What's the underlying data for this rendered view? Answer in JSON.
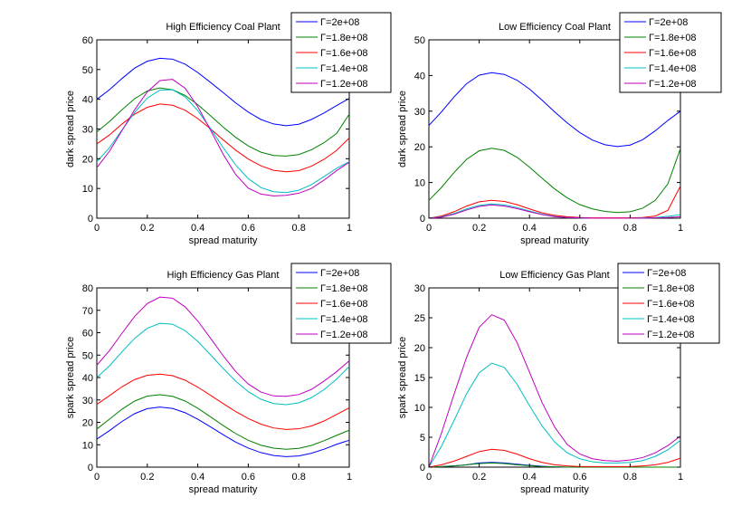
{
  "chart_data": [
    {
      "type": "line",
      "title": "High Efficiency Coal Plant",
      "xlabel": "spread maturity",
      "ylabel": "dark spread price",
      "xlim": [
        0,
        1
      ],
      "ylim": [
        0,
        60
      ],
      "xticks": [
        0,
        0.2,
        0.4,
        0.6,
        0.8,
        1
      ],
      "xtick_labels": [
        "0",
        "0.2",
        "0.4",
        "0.6",
        "0.8",
        "1"
      ],
      "yticks": [
        0,
        10,
        20,
        30,
        40,
        50,
        60
      ],
      "ytick_labels": [
        "0",
        "10",
        "20",
        "30",
        "40",
        "50",
        "60"
      ],
      "grid": false,
      "legend_position": "top-right",
      "x": [
        0,
        0.05,
        0.1,
        0.15,
        0.2,
        0.25,
        0.3,
        0.35,
        0.4,
        0.45,
        0.5,
        0.55,
        0.6,
        0.65,
        0.7,
        0.75,
        0.8,
        0.85,
        0.9,
        0.95,
        1
      ],
      "series": [
        {
          "name": "Γ=2e+08",
          "color": "#0000ff",
          "values": [
            40,
            43.2,
            47,
            50.5,
            52.8,
            53.8,
            53.5,
            51.8,
            49,
            45.7,
            42.3,
            38.8,
            35.7,
            33.2,
            31.7,
            31.1,
            31.6,
            33.2,
            35.4,
            37.9,
            40.3
          ]
        },
        {
          "name": "Γ=1.8e+08",
          "color": "#008000",
          "values": [
            29,
            32.5,
            36.5,
            40.2,
            42.8,
            43.8,
            43.2,
            41.3,
            38.2,
            34.5,
            30.7,
            27.2,
            24.3,
            22.2,
            21.1,
            20.9,
            21.4,
            23,
            25.4,
            28.5,
            35
          ]
        },
        {
          "name": "Γ=1.6e+08",
          "color": "#ff0000",
          "values": [
            25,
            28,
            31.7,
            35,
            37.3,
            38.4,
            38,
            36.3,
            33.5,
            30.1,
            26.4,
            22.9,
            19.9,
            17.6,
            16.1,
            15.6,
            16,
            17.5,
            19.8,
            22.8,
            27
          ]
        },
        {
          "name": "Γ=1.4e+08",
          "color": "#00bfbf",
          "values": [
            19,
            23.7,
            29.7,
            35.6,
            40.4,
            43.1,
            43.2,
            40.8,
            36.2,
            30.2,
            23.8,
            17.9,
            13.3,
            10.3,
            8.9,
            8.6,
            9.4,
            11.3,
            14,
            16.8,
            19
          ]
        },
        {
          "name": "Γ=1.2e+08",
          "color": "#bf00bf",
          "values": [
            17,
            22.5,
            29.5,
            36.5,
            42.5,
            46.3,
            46.7,
            43.7,
            37.5,
            29.7,
            21.6,
            14.7,
            10.1,
            8.1,
            7.5,
            7.7,
            8.4,
            10,
            12.8,
            16,
            18.8
          ]
        }
      ]
    },
    {
      "type": "line",
      "title": "Low Efficiency Coal Plant",
      "xlabel": "spread maturity",
      "ylabel": "dark spread price",
      "xlim": [
        0,
        1
      ],
      "ylim": [
        0,
        50
      ],
      "xticks": [
        0,
        0.2,
        0.4,
        0.6,
        0.8,
        1
      ],
      "xtick_labels": [
        "0",
        "0.2",
        "0.4",
        "0.6",
        "0.8",
        "1"
      ],
      "yticks": [
        0,
        10,
        20,
        30,
        40,
        50
      ],
      "ytick_labels": [
        "0",
        "10",
        "20",
        "30",
        "40",
        "50"
      ],
      "grid": false,
      "legend_position": "top-right",
      "x": [
        0,
        0.05,
        0.1,
        0.15,
        0.2,
        0.25,
        0.3,
        0.35,
        0.4,
        0.45,
        0.5,
        0.55,
        0.6,
        0.65,
        0.7,
        0.75,
        0.8,
        0.85,
        0.9,
        0.95,
        1
      ],
      "series": [
        {
          "name": "Γ=2e+08",
          "color": "#0000ff",
          "values": [
            26,
            29.8,
            34,
            37.7,
            40.1,
            40.8,
            40.3,
            38.7,
            36.2,
            33.1,
            29.8,
            26.7,
            24,
            21.9,
            20.6,
            20.1,
            20.5,
            22,
            24.5,
            27.4,
            30
          ]
        },
        {
          "name": "Γ=1.8e+08",
          "color": "#008000",
          "values": [
            5,
            8.6,
            12.8,
            16.5,
            18.9,
            19.6,
            19,
            17.1,
            14.3,
            11.2,
            8.2,
            5.7,
            3.8,
            2.6,
            1.9,
            1.6,
            1.8,
            2.8,
            5,
            9.6,
            19.5
          ]
        },
        {
          "name": "Γ=1.6e+08",
          "color": "#ff0000",
          "values": [
            0,
            0.6,
            1.8,
            3.4,
            4.6,
            5,
            4.7,
            3.8,
            2.6,
            1.5,
            0.8,
            0.4,
            0.2,
            0.1,
            0.1,
            0.1,
            0.1,
            0.2,
            0.6,
            2.2,
            9
          ]
        },
        {
          "name": "Γ=1.4e+08",
          "color": "#00bfbf",
          "values": [
            0,
            0.4,
            1.3,
            2.6,
            3.6,
            4,
            3.7,
            3,
            2,
            1.1,
            0.5,
            0.2,
            0.1,
            0,
            0,
            0,
            0,
            0.1,
            0.2,
            0.5,
            1
          ]
        },
        {
          "name": "Γ=1.2e+08",
          "color": "#bf00bf",
          "values": [
            0,
            0.3,
            1.1,
            2.3,
            3.3,
            3.7,
            3.4,
            2.7,
            1.8,
            1,
            0.4,
            0.2,
            0.1,
            0,
            0,
            0,
            0,
            0,
            0.1,
            0.2,
            0.4
          ]
        }
      ]
    },
    {
      "type": "line",
      "title": "High Efficiency Gas Plant",
      "xlabel": "spread maturity",
      "ylabel": "spark spread price",
      "xlim": [
        0,
        1
      ],
      "ylim": [
        0,
        80
      ],
      "xticks": [
        0,
        0.2,
        0.4,
        0.6,
        0.8,
        1
      ],
      "xtick_labels": [
        "0",
        "0.2",
        "0.4",
        "0.6",
        "0.8",
        "1"
      ],
      "yticks": [
        0,
        10,
        20,
        30,
        40,
        50,
        60,
        70,
        80
      ],
      "ytick_labels": [
        "0",
        "10",
        "20",
        "30",
        "40",
        "50",
        "60",
        "70",
        "80"
      ],
      "grid": false,
      "legend_position": "top-right",
      "x": [
        0,
        0.05,
        0.1,
        0.15,
        0.2,
        0.25,
        0.3,
        0.35,
        0.4,
        0.45,
        0.5,
        0.55,
        0.6,
        0.65,
        0.7,
        0.75,
        0.8,
        0.85,
        0.9,
        0.95,
        1
      ],
      "series": [
        {
          "name": "Γ=2e+08",
          "color": "#0000ff",
          "values": [
            12.5,
            16.3,
            20.4,
            23.9,
            26.1,
            26.8,
            26.2,
            24.3,
            21.4,
            18,
            14.5,
            11.2,
            8.5,
            6.5,
            5.2,
            4.7,
            5,
            6.2,
            8,
            10.2,
            12
          ]
        },
        {
          "name": "Γ=1.8e+08",
          "color": "#008000",
          "values": [
            17,
            21.4,
            25.9,
            29.5,
            31.7,
            32.3,
            31.6,
            29.5,
            26.3,
            22.5,
            18.6,
            15,
            12,
            9.8,
            8.5,
            8,
            8.4,
            9.7,
            11.8,
            14.2,
            16.5
          ]
        },
        {
          "name": "Γ=1.6e+08",
          "color": "#ff0000",
          "values": [
            28,
            31.9,
            35.9,
            39.1,
            41,
            41.5,
            40.8,
            38.8,
            35.7,
            32.1,
            28.4,
            24.8,
            21.7,
            19.2,
            17.5,
            16.8,
            17.1,
            18.4,
            20.6,
            23.5,
            26.5
          ]
        },
        {
          "name": "Γ=1.4e+08",
          "color": "#00bfbf",
          "values": [
            40,
            45.2,
            51.5,
            57.5,
            62,
            64.2,
            63.8,
            60.9,
            56.1,
            50.2,
            44.1,
            38.4,
            33.7,
            30.3,
            28.4,
            27.9,
            28.7,
            31,
            34.6,
            39.3,
            45
          ]
        },
        {
          "name": "Γ=1.2e+08",
          "color": "#bf00bf",
          "values": [
            45.5,
            52,
            59.8,
            67.3,
            73,
            75.9,
            75.4,
            71.5,
            65.2,
            57.6,
            49.8,
            42.7,
            37.1,
            33.5,
            31.8,
            31.6,
            32.4,
            34.7,
            38.4,
            42.6,
            47.5
          ]
        }
      ]
    },
    {
      "type": "line",
      "title": "Low Efficiency Gas Plant",
      "xlabel": "spread maturity",
      "ylabel": "spark spread price",
      "xlim": [
        0,
        1
      ],
      "ylim": [
        0,
        30
      ],
      "xticks": [
        0,
        0.2,
        0.4,
        0.6,
        0.8,
        1
      ],
      "xtick_labels": [
        "0",
        "0.2",
        "0.4",
        "0.6",
        "0.8",
        "1"
      ],
      "yticks": [
        0,
        5,
        10,
        15,
        20,
        25,
        30
      ],
      "ytick_labels": [
        "0",
        "5",
        "10",
        "15",
        "20",
        "25",
        "30"
      ],
      "grid": false,
      "legend_position": "top-right",
      "x": [
        0,
        0.05,
        0.1,
        0.15,
        0.2,
        0.25,
        0.3,
        0.35,
        0.4,
        0.45,
        0.5,
        0.55,
        0.6,
        0.65,
        0.7,
        0.75,
        0.8,
        0.85,
        0.9,
        0.95,
        1
      ],
      "series": [
        {
          "name": "Γ=2e+08",
          "color": "#0000ff",
          "values": [
            0,
            0.1,
            0.2,
            0.4,
            0.7,
            0.8,
            0.7,
            0.5,
            0.3,
            0.15,
            0.05,
            0,
            0,
            0,
            0,
            0,
            0,
            0,
            0,
            0,
            0
          ]
        },
        {
          "name": "Γ=1.8e+08",
          "color": "#008000",
          "values": [
            0,
            0.1,
            0.2,
            0.4,
            0.6,
            0.7,
            0.6,
            0.4,
            0.25,
            0.1,
            0.05,
            0,
            0,
            0,
            0,
            0,
            0,
            0,
            0,
            0,
            0
          ]
        },
        {
          "name": "Γ=1.6e+08",
          "color": "#ff0000",
          "values": [
            0,
            0.4,
            1,
            1.8,
            2.6,
            3,
            2.8,
            2.2,
            1.4,
            0.8,
            0.4,
            0.2,
            0.1,
            0.1,
            0.1,
            0.1,
            0.1,
            0.2,
            0.4,
            0.8,
            1.5
          ]
        },
        {
          "name": "Γ=1.4e+08",
          "color": "#00bfbf",
          "values": [
            0,
            3.5,
            7.8,
            12.3,
            15.8,
            17.4,
            16.7,
            13.9,
            10.3,
            6.9,
            4.2,
            2.4,
            1.4,
            0.9,
            0.7,
            0.7,
            0.8,
            1.1,
            1.8,
            2.9,
            4.5
          ]
        },
        {
          "name": "Γ=1.2e+08",
          "color": "#bf00bf",
          "values": [
            0,
            5.7,
            12.2,
            18.4,
            23.4,
            25.5,
            24.6,
            20.9,
            15.9,
            10.8,
            6.7,
            3.8,
            2.2,
            1.4,
            1.1,
            1,
            1.2,
            1.6,
            2.4,
            3.6,
            5.2
          ]
        }
      ]
    }
  ]
}
